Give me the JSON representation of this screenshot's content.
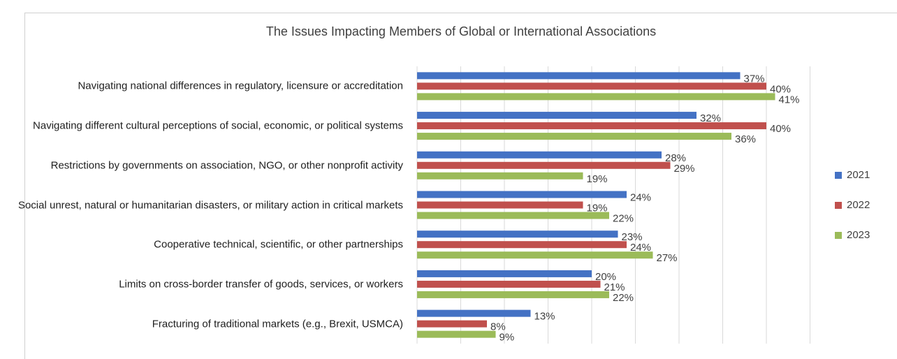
{
  "chart_data": {
    "type": "hbar",
    "title": "The Issues Impacting Members of Global or International Associations",
    "categories": [
      "Navigating national differences in regulatory, licensure or accreditation",
      "Navigating different cultural perceptions of social, economic, or political systems",
      "Restrictions by governments on association, NGO, or other nonprofit activity",
      "Social unrest, natural or humanitarian disasters, or military action in critical markets",
      "Cooperative technical, scientific, or other partnerships",
      "Limits on cross-border transfer of goods, services, or workers",
      "Fracturing of traditional markets (e.g., Brexit, USMCA)"
    ],
    "series": [
      {
        "name": "2021",
        "color": "#4472c4",
        "values": [
          37,
          32,
          28,
          24,
          23,
          20,
          13
        ],
        "value_labels": [
          "37%",
          "32%",
          "28%",
          "24%",
          "23%",
          "20%",
          "13%"
        ]
      },
      {
        "name": "2022",
        "color": "#c0504d",
        "values": [
          40,
          40,
          29,
          19,
          24,
          21,
          8
        ],
        "value_labels": [
          "40%",
          "40%",
          "29%",
          "19%",
          "24%",
          "21%",
          "8%"
        ]
      },
      {
        "name": "2023",
        "color": "#9bbb59",
        "values": [
          41,
          36,
          19,
          22,
          27,
          22,
          9
        ],
        "value_labels": [
          "41%",
          "36%",
          "19%",
          "22%",
          "27%",
          "22%",
          "9%"
        ]
      }
    ],
    "xlim": [
      0,
      45
    ],
    "xticks": [
      0,
      5,
      10,
      15,
      20,
      25,
      30,
      35,
      40,
      45
    ],
    "grid": true,
    "legend": "right"
  }
}
